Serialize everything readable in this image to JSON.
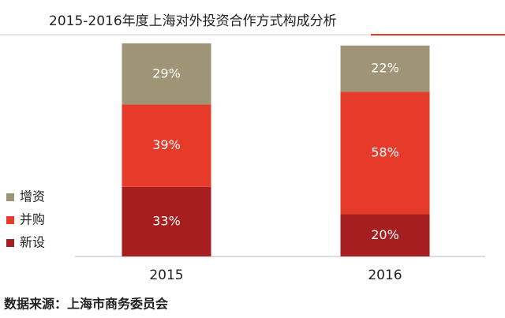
{
  "chart_data": {
    "type": "stacked-bar",
    "title": "2015-2016年度上海对外投资合作方式构成分析",
    "categories": [
      "2015",
      "2016"
    ],
    "series": [
      {
        "name": "新设",
        "color": "#a61f20",
        "values": [
          33,
          20
        ],
        "value_labels": [
          "33%",
          "20%"
        ]
      },
      {
        "name": "并购",
        "color": "#e63a2b",
        "values": [
          39,
          58
        ],
        "value_labels": [
          "39%",
          "58%"
        ]
      },
      {
        "name": "增资",
        "color": "#a09477",
        "values": [
          29,
          22
        ],
        "value_labels": [
          "29%",
          "22%"
        ]
      }
    ],
    "source": "数据来源：上海市商务委员会"
  }
}
